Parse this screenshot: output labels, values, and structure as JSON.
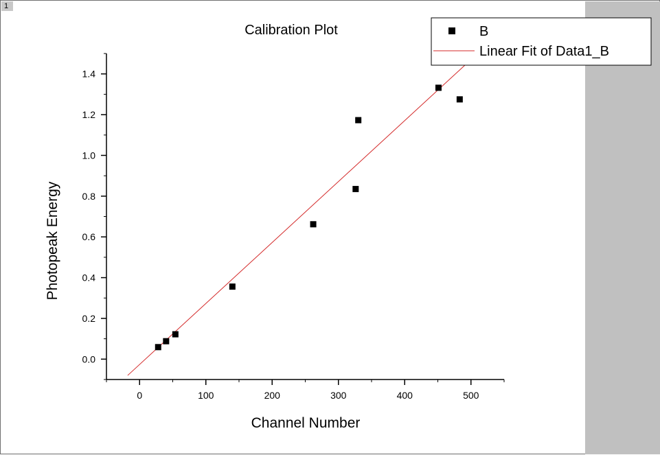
{
  "window": {
    "tab_number": "1"
  },
  "colors": {
    "marker": "#000000",
    "fit_line": "#d42a2a",
    "side_panel": "#c0c0c0"
  },
  "chart_data": {
    "type": "scatter",
    "title": "Calibration Plot",
    "xlabel": "Channel Number",
    "ylabel": "Photopeak Energy",
    "xlim": [
      -50,
      550
    ],
    "ylim": [
      -0.1,
      1.5
    ],
    "x_ticks": [
      "0",
      "100",
      "200",
      "300",
      "400",
      "500"
    ],
    "y_ticks": [
      "0.0",
      "0.2",
      "0.4",
      "0.6",
      "0.8",
      "1.0",
      "1.2",
      "1.4"
    ],
    "x_tick_values": [
      0,
      100,
      200,
      300,
      400,
      500
    ],
    "y_tick_values": [
      0.0,
      0.2,
      0.4,
      0.6,
      0.8,
      1.0,
      1.2,
      1.4
    ],
    "series": [
      {
        "name": "B",
        "kind": "scatter",
        "marker": "square",
        "x": [
          28,
          40,
          54,
          140,
          262,
          326,
          330,
          451,
          483
        ],
        "y": [
          0.059,
          0.088,
          0.122,
          0.356,
          0.662,
          0.835,
          1.173,
          1.332,
          1.275
        ]
      },
      {
        "name": "Linear Fit of Data1_B",
        "kind": "line",
        "x": [
          -18,
          510
        ],
        "y": [
          -0.08,
          1.5
        ]
      }
    ],
    "legend": {
      "position": "top-right"
    },
    "grid": false
  }
}
